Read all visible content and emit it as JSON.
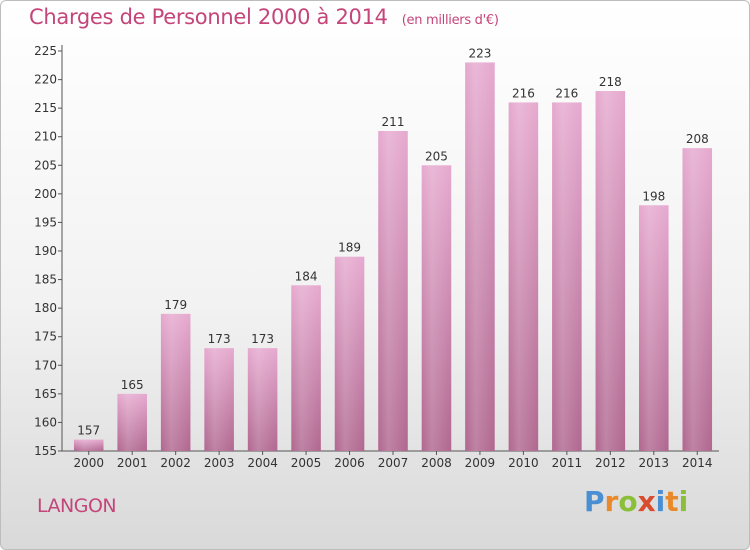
{
  "header": {
    "title": "Charges de Personnel 2000 à 2014",
    "subtitle": "(en milliers d'€)"
  },
  "footer": {
    "commune": "LANGON",
    "logo": "Proxiti"
  },
  "colors": {
    "bar_top": "#e6a9cf",
    "bar_bottom": "#b0678f",
    "title": "#c4457a",
    "logo_letters": [
      "#4a8fd4",
      "#e88a2b",
      "#8bbf3a",
      "#d94c2e",
      "#4a8fd4",
      "#e88a2b",
      "#8bbf3a"
    ]
  },
  "chart_data": {
    "type": "bar",
    "title": "Charges de Personnel 2000 à 2014",
    "subtitle": "(en milliers d'€)",
    "xlabel": "",
    "ylabel": "",
    "categories": [
      "2000",
      "2001",
      "2002",
      "2003",
      "2004",
      "2005",
      "2006",
      "2007",
      "2008",
      "2009",
      "2010",
      "2011",
      "2012",
      "2013",
      "2014"
    ],
    "values": [
      157,
      165,
      179,
      173,
      173,
      184,
      189,
      211,
      205,
      223,
      216,
      216,
      218,
      198,
      208
    ],
    "ylim": [
      155,
      225
    ],
    "yticks": [
      155,
      160,
      165,
      170,
      175,
      180,
      185,
      190,
      195,
      200,
      205,
      210,
      215,
      220,
      225
    ],
    "grid": false,
    "legend": "none"
  }
}
